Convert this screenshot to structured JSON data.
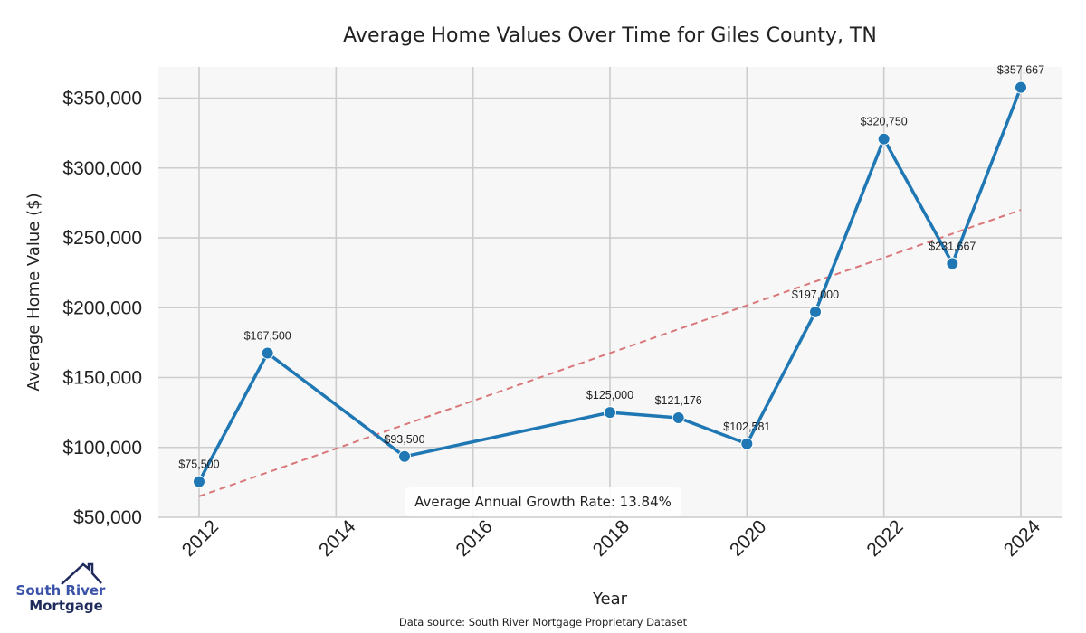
{
  "chart_data": {
    "type": "line",
    "title": "Average Home Values Over Time for Giles County, TN",
    "xlabel": "Year",
    "ylabel": "Average Home Value ($)",
    "x": [
      2012,
      2013,
      2015,
      2018,
      2019,
      2020,
      2021,
      2022,
      2023,
      2024
    ],
    "series": [
      {
        "name": "Average Home Value",
        "color": "#1f77b4",
        "values": [
          75500,
          167500,
          93500,
          125000,
          121176,
          102581,
          197000,
          320750,
          231667,
          357667
        ],
        "labels": [
          "$75,500",
          "$167,500",
          "$93,500",
          "$125,000",
          "$121,176",
          "$102,581",
          "$197,000",
          "$320,750",
          "$231,667",
          "$357,667"
        ]
      },
      {
        "name": "Trend",
        "color": "#d9777a",
        "style": "dashed",
        "x": [
          2012,
          2024
        ],
        "values": [
          65000,
          270000
        ]
      }
    ],
    "xlim": [
      2011.4,
      2024.6
    ],
    "ylim": [
      50000,
      375000
    ],
    "xticks": [
      2012,
      2014,
      2016,
      2018,
      2020,
      2022,
      2024
    ],
    "xtick_labels": [
      "2012",
      "2014",
      "2016",
      "2018",
      "2020",
      "2022",
      "2024"
    ],
    "yticks": [
      50000,
      100000,
      150000,
      200000,
      250000,
      300000,
      350000
    ],
    "ytick_labels": [
      "$50,000",
      "$100,000",
      "$150,000",
      "$200,000",
      "$250,000",
      "$300,000",
      "$350,000"
    ],
    "grid": true,
    "annotation": "Average Annual Growth Rate: 13.84%"
  },
  "footer": {
    "source": "Data source: South River Mortgage Proprietary Dataset"
  },
  "logo": {
    "line1": "South River",
    "line2": "Mortgage",
    "colors": {
      "primary": "#1f2a5c",
      "secondary": "#3a52a8"
    }
  },
  "colors": {
    "plot_bg": "#f7f7f7",
    "grid": "#cccccc",
    "line": "#1f77b4",
    "trend": "#d9777a"
  }
}
